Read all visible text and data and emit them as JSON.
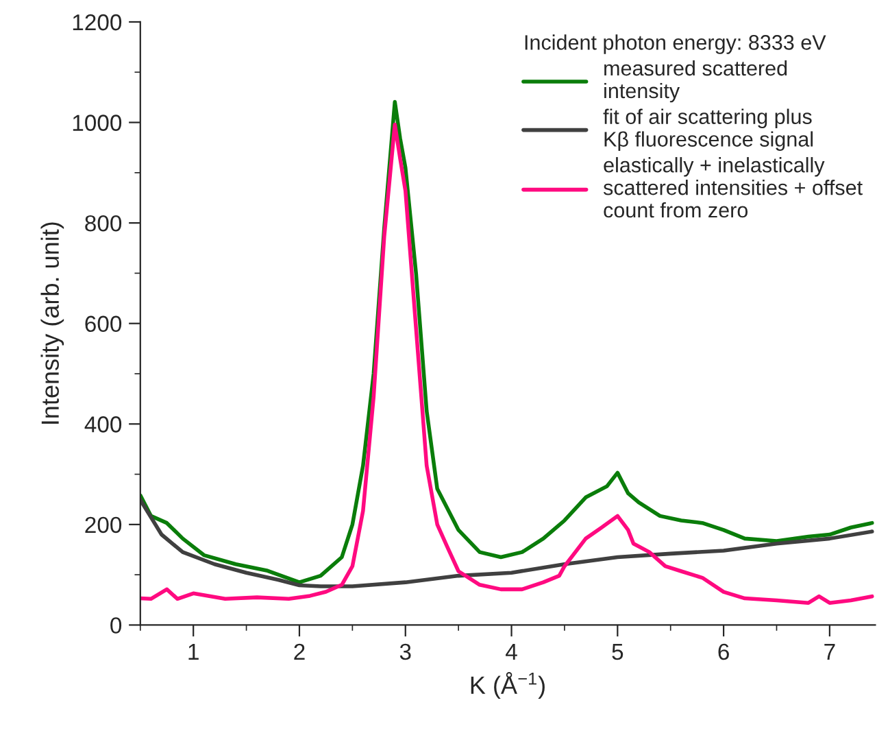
{
  "chart_data": {
    "type": "line",
    "xlabel": "K (Å$^{−1}$)",
    "ylabel": "Intensity (arb. unit)",
    "legend_title": "Incident photon energy: 8333 eV",
    "legend": "top right",
    "grid": false,
    "marker": "none",
    "line_style": "solid",
    "xlim": [
      0.5,
      7.43
    ],
    "xticks": [
      1,
      2,
      3,
      4,
      5,
      6,
      7
    ],
    "ylim": [
      0,
      1200
    ],
    "yticks": [
      0,
      200,
      400,
      600,
      800,
      1000,
      1200
    ],
    "series": [
      {
        "name": "measured scattered\nintensity",
        "color": "#0a7d0a",
        "x": [
          0.5,
          0.6,
          0.75,
          0.9,
          1.1,
          1.4,
          1.7,
          2.0,
          2.2,
          2.4,
          2.5,
          2.6,
          2.7,
          2.8,
          2.9,
          2.95,
          3.0,
          3.1,
          3.2,
          3.3,
          3.5,
          3.7,
          3.9,
          4.1,
          4.3,
          4.5,
          4.7,
          4.9,
          5.0,
          5.1,
          5.2,
          5.4,
          5.6,
          5.8,
          6.0,
          6.2,
          6.5,
          6.8,
          7.0,
          7.2,
          7.4
        ],
        "values": [
          258,
          217,
          203,
          172,
          139,
          121,
          108,
          85,
          98,
          135,
          200,
          317,
          500,
          790,
          1041,
          968,
          910,
          700,
          426,
          271,
          189,
          145,
          135,
          145,
          172,
          208,
          254,
          276,
          303,
          262,
          244,
          217,
          208,
          203,
          189,
          172,
          167,
          176,
          180,
          194,
          203
        ]
      },
      {
        "name": "fit of air scattering plus\nKβ fluorescence signal",
        "color": "#404040",
        "x": [
          0.5,
          0.7,
          0.9,
          1.2,
          1.5,
          1.8,
          2.0,
          2.2,
          2.5,
          3.0,
          3.5,
          4.0,
          4.5,
          5.0,
          5.5,
          6.0,
          6.5,
          7.0,
          7.4
        ],
        "values": [
          249,
          180,
          145,
          121,
          104,
          90,
          79,
          77,
          77,
          85,
          98,
          104,
          121,
          135,
          142,
          148,
          162,
          172,
          186
        ]
      },
      {
        "name": "elastically + inelastically\nscattered intensities + offset\ncount from zero",
        "color": "#ff0a80",
        "x": [
          0.5,
          0.6,
          0.75,
          0.85,
          1.0,
          1.3,
          1.6,
          1.9,
          2.1,
          2.25,
          2.4,
          2.5,
          2.6,
          2.7,
          2.8,
          2.9,
          2.95,
          3.0,
          3.1,
          3.2,
          3.3,
          3.4,
          3.5,
          3.7,
          3.9,
          4.1,
          4.3,
          4.45,
          4.5,
          4.7,
          4.85,
          5.0,
          5.1,
          5.15,
          5.3,
          5.45,
          5.6,
          5.8,
          6.0,
          6.2,
          6.5,
          6.8,
          6.9,
          7.0,
          7.2,
          7.4
        ],
        "values": [
          53,
          52,
          71,
          52,
          63,
          52,
          55,
          52,
          58,
          66,
          80,
          117,
          227,
          454,
          773,
          996,
          928,
          864,
          590,
          317,
          200,
          153,
          107,
          80,
          71,
          71,
          85,
          98,
          117,
          172,
          194,
          217,
          189,
          162,
          145,
          117,
          107,
          94,
          66,
          53,
          49,
          44,
          57,
          44,
          49,
          57
        ]
      }
    ]
  }
}
